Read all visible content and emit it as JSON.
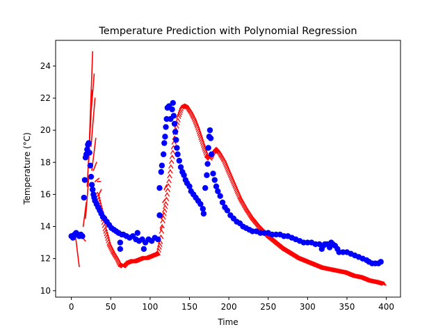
{
  "chart_data": {
    "type": "scatter",
    "title": "Temperature Prediction with Polynomial Regression",
    "xlabel": "Time",
    "ylabel": "Temperature (°C)",
    "xlim": [
      -20,
      418
    ],
    "ylim": [
      9.6,
      25.6
    ],
    "xticks": [
      0,
      50,
      100,
      150,
      200,
      250,
      300,
      350,
      400
    ],
    "yticks": [
      10,
      12,
      14,
      16,
      18,
      20,
      22,
      24
    ],
    "grid": false,
    "legend": "none",
    "colors": {
      "actual": "#0000ff",
      "predicted": "#ff0000"
    },
    "actual_points": [
      [
        0,
        13.4
      ],
      [
        2,
        13.3
      ],
      [
        4,
        13.5
      ],
      [
        6,
        13.6
      ],
      [
        8,
        13.5
      ],
      [
        10,
        13.4
      ],
      [
        12,
        13.5
      ],
      [
        14,
        13.4
      ],
      [
        16,
        15.8
      ],
      [
        17,
        16.9
      ],
      [
        18,
        18.3
      ],
      [
        19,
        18.5
      ],
      [
        20,
        18.8
      ],
      [
        21,
        19.1
      ],
      [
        22,
        19.2
      ],
      [
        23,
        18.6
      ],
      [
        24,
        17.8
      ],
      [
        25,
        17.1
      ],
      [
        26,
        16.6
      ],
      [
        27,
        16.3
      ],
      [
        28,
        16.0
      ],
      [
        29,
        15.8
      ],
      [
        30,
        15.6
      ],
      [
        32,
        15.4
      ],
      [
        34,
        15.2
      ],
      [
        36,
        15.0
      ],
      [
        38,
        14.8
      ],
      [
        40,
        14.6
      ],
      [
        42,
        14.5
      ],
      [
        45,
        14.3
      ],
      [
        48,
        14.1
      ],
      [
        51,
        13.9
      ],
      [
        54,
        13.8
      ],
      [
        57,
        13.7
      ],
      [
        60,
        13.6
      ],
      [
        62,
        12.6
      ],
      [
        62,
        13.0
      ],
      [
        64,
        13.5
      ],
      [
        66,
        13.5
      ],
      [
        70,
        13.4
      ],
      [
        74,
        13.3
      ],
      [
        78,
        13.4
      ],
      [
        82,
        13.2
      ],
      [
        84,
        13.6
      ],
      [
        86,
        13.1
      ],
      [
        90,
        13.2
      ],
      [
        92,
        12.6
      ],
      [
        94,
        13.0
      ],
      [
        98,
        13.2
      ],
      [
        102,
        13.1
      ],
      [
        106,
        13.3
      ],
      [
        110,
        13.2
      ],
      [
        112,
        14.7
      ],
      [
        112,
        16.4
      ],
      [
        114,
        17.4
      ],
      [
        115,
        17.8
      ],
      [
        117,
        18.5
      ],
      [
        118,
        19.2
      ],
      [
        119,
        19.6
      ],
      [
        120,
        20.2
      ],
      [
        121,
        20.7
      ],
      [
        122,
        21.4
      ],
      [
        124,
        21.5
      ],
      [
        126,
        20.7
      ],
      [
        128,
        21.3
      ],
      [
        129,
        21.7
      ],
      [
        130,
        20.9
      ],
      [
        131,
        20.4
      ],
      [
        132,
        19.9
      ],
      [
        133,
        19.4
      ],
      [
        134,
        18.9
      ],
      [
        135,
        18.5
      ],
      [
        137,
        18.1
      ],
      [
        139,
        17.7
      ],
      [
        141,
        17.4
      ],
      [
        143,
        17.2
      ],
      [
        145,
        16.9
      ],
      [
        147,
        16.7
      ],
      [
        150,
        16.5
      ],
      [
        152,
        16.2
      ],
      [
        155,
        16.0
      ],
      [
        158,
        15.8
      ],
      [
        161,
        15.6
      ],
      [
        164,
        15.4
      ],
      [
        167,
        15.1
      ],
      [
        168,
        14.8
      ],
      [
        170,
        16.4
      ],
      [
        172,
        17.2
      ],
      [
        173,
        17.9
      ],
      [
        174,
        18.9
      ],
      [
        175,
        19.6
      ],
      [
        176,
        20.0
      ],
      [
        177,
        19.5
      ],
      [
        178,
        18.5
      ],
      [
        180,
        17.3
      ],
      [
        182,
        16.9
      ],
      [
        184,
        16.5
      ],
      [
        186,
        16.2
      ],
      [
        189,
        15.9
      ],
      [
        192,
        15.5
      ],
      [
        195,
        15.2
      ],
      [
        198,
        15.0
      ],
      [
        202,
        14.7
      ],
      [
        206,
        14.5
      ],
      [
        210,
        14.3
      ],
      [
        214,
        14.2
      ],
      [
        218,
        14.0
      ],
      [
        222,
        13.9
      ],
      [
        226,
        13.8
      ],
      [
        230,
        13.7
      ],
      [
        235,
        13.7
      ],
      [
        240,
        13.6
      ],
      [
        245,
        13.6
      ],
      [
        250,
        13.6
      ],
      [
        255,
        13.5
      ],
      [
        260,
        13.5
      ],
      [
        265,
        13.5
      ],
      [
        270,
        13.4
      ],
      [
        275,
        13.4
      ],
      [
        280,
        13.3
      ],
      [
        285,
        13.2
      ],
      [
        290,
        13.1
      ],
      [
        295,
        13.0
      ],
      [
        300,
        13.0
      ],
      [
        305,
        13.0
      ],
      [
        310,
        12.9
      ],
      [
        315,
        12.9
      ],
      [
        318,
        12.6
      ],
      [
        320,
        12.8
      ],
      [
        322,
        12.9
      ],
      [
        325,
        12.9
      ],
      [
        328,
        12.7
      ],
      [
        330,
        13.0
      ],
      [
        332,
        12.9
      ],
      [
        335,
        12.8
      ],
      [
        338,
        12.6
      ],
      [
        340,
        12.4
      ],
      [
        345,
        12.4
      ],
      [
        350,
        12.4
      ],
      [
        355,
        12.3
      ],
      [
        360,
        12.2
      ],
      [
        365,
        12.1
      ],
      [
        370,
        12.0
      ],
      [
        375,
        11.9
      ],
      [
        378,
        11.8
      ],
      [
        382,
        11.7
      ],
      [
        386,
        11.7
      ],
      [
        390,
        11.7
      ],
      [
        393,
        11.8
      ]
    ],
    "prediction_curve": [
      [
        33,
        16.0
      ],
      [
        38,
        15.0
      ],
      [
        43,
        13.8
      ],
      [
        48,
        12.9
      ],
      [
        53,
        12.4
      ],
      [
        58,
        12.0
      ],
      [
        62,
        11.6
      ],
      [
        66,
        11.5
      ],
      [
        70,
        11.7
      ],
      [
        75,
        11.8
      ],
      [
        80,
        11.8
      ],
      [
        85,
        11.9
      ],
      [
        90,
        12.0
      ],
      [
        95,
        12.0
      ],
      [
        100,
        12.1
      ],
      [
        105,
        12.2
      ],
      [
        110,
        12.3
      ],
      [
        113,
        13.0
      ],
      [
        116,
        14.3
      ],
      [
        120,
        15.4
      ],
      [
        124,
        16.8
      ],
      [
        128,
        18.3
      ],
      [
        132,
        19.8
      ],
      [
        136,
        20.8
      ],
      [
        140,
        21.4
      ],
      [
        144,
        21.5
      ],
      [
        148,
        21.4
      ],
      [
        152,
        21.1
      ],
      [
        156,
        20.7
      ],
      [
        160,
        20.2
      ],
      [
        164,
        19.6
      ],
      [
        168,
        19.0
      ],
      [
        172,
        18.4
      ],
      [
        176,
        18.2
      ],
      [
        180,
        18.6
      ],
      [
        184,
        18.8
      ],
      [
        188,
        18.6
      ],
      [
        194,
        18.1
      ],
      [
        200,
        17.4
      ],
      [
        207,
        16.6
      ],
      [
        214,
        15.8
      ],
      [
        222,
        15.1
      ],
      [
        230,
        14.5
      ],
      [
        240,
        13.9
      ],
      [
        250,
        13.4
      ],
      [
        260,
        13.0
      ],
      [
        270,
        12.6
      ],
      [
        280,
        12.3
      ],
      [
        290,
        12.0
      ],
      [
        300,
        11.8
      ],
      [
        310,
        11.6
      ],
      [
        320,
        11.4
      ],
      [
        330,
        11.3
      ],
      [
        340,
        11.2
      ],
      [
        350,
        11.1
      ],
      [
        360,
        10.9
      ],
      [
        370,
        10.8
      ],
      [
        380,
        10.6
      ],
      [
        390,
        10.5
      ],
      [
        397,
        10.4
      ]
    ],
    "prediction_segments": [
      [
        [
          5,
          13.5
        ],
        [
          10,
          11.5
        ]
      ],
      [
        [
          6,
          13.6
        ],
        [
          12,
          13.5
        ]
      ],
      [
        [
          8,
          13.4
        ],
        [
          15,
          13.3
        ]
      ],
      [
        [
          10,
          13.5
        ],
        [
          18,
          13.1
        ]
      ],
      [
        [
          15,
          14.0
        ],
        [
          19,
          15.5
        ]
      ],
      [
        [
          18,
          14.5
        ],
        [
          22,
          17.0
        ]
      ],
      [
        [
          20,
          16.5
        ],
        [
          25,
          21.0
        ]
      ],
      [
        [
          22,
          18.0
        ],
        [
          26,
          22.5
        ]
      ],
      [
        [
          23,
          19.5
        ],
        [
          27,
          24.9
        ]
      ],
      [
        [
          24,
          20.5
        ],
        [
          29,
          23.5
        ]
      ],
      [
        [
          25,
          19.0
        ],
        [
          30,
          22.0
        ]
      ],
      [
        [
          26,
          17.5
        ],
        [
          31,
          19.5
        ]
      ],
      [
        [
          28,
          17.5
        ],
        [
          32,
          18.0
        ]
      ],
      [
        [
          30,
          16.8
        ],
        [
          35,
          17.0
        ]
      ],
      [
        [
          33,
          16.8
        ],
        [
          37,
          16.8
        ]
      ],
      [
        [
          35,
          16.0
        ],
        [
          38,
          16.3
        ]
      ],
      [
        [
          113,
          13.8
        ],
        [
          116,
          14.0
        ]
      ],
      [
        [
          114,
          14.5
        ],
        [
          117,
          14.8
        ]
      ],
      [
        [
          116,
          15.5
        ],
        [
          119,
          15.7
        ]
      ],
      [
        [
          118,
          16.3
        ],
        [
          121,
          16.6
        ]
      ]
    ]
  }
}
